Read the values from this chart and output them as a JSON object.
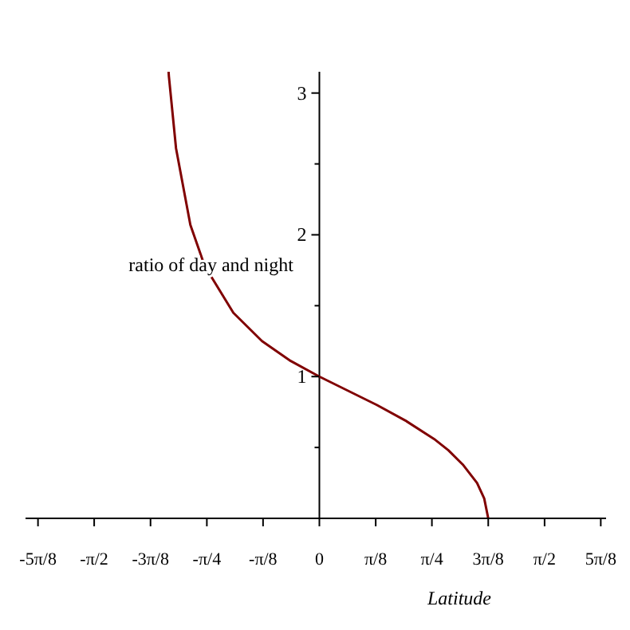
{
  "chart_data": {
    "type": "line",
    "xlabel": "Latitude",
    "x": [
      -1.052,
      -1.05,
      -1.0,
      -0.9,
      -0.8,
      -0.6,
      -0.4,
      -0.2,
      0,
      0.2,
      0.4,
      0.6,
      0.8,
      0.9,
      1.0,
      1.1,
      1.15,
      1.178
    ],
    "series": [
      {
        "name": "ratio of day and night",
        "color": "#800000",
        "values": [
          3.15,
          3.12,
          2.61,
          2.07,
          1.78,
          1.45,
          1.25,
          1.11,
          1.0,
          0.9,
          0.8,
          0.69,
          0.56,
          0.48,
          0.38,
          0.25,
          0.14,
          0
        ]
      }
    ],
    "xlim": [
      -2.05,
      2.0
    ],
    "xticks": [
      {
        "value": -1.963,
        "label": "-5π/8"
      },
      {
        "value": -1.571,
        "label": "-π/2"
      },
      {
        "value": -1.178,
        "label": "-3π/8"
      },
      {
        "value": -0.785,
        "label": "-π/4"
      },
      {
        "value": -0.393,
        "label": "-π/8"
      },
      0,
      {
        "value": 0.393,
        "label": "π/8"
      },
      {
        "value": 0.785,
        "label": "π/4"
      },
      {
        "value": 1.178,
        "label": "3π/8"
      },
      {
        "value": 1.571,
        "label": "π/2"
      },
      {
        "value": 1.963,
        "label": "5π/8"
      }
    ],
    "ylim": [
      0,
      3.15
    ],
    "yticks": [
      {
        "value": 0.5,
        "label": null
      },
      1,
      {
        "value": 1.5,
        "label": null
      },
      2,
      {
        "value": 2.5,
        "label": null
      },
      3
    ],
    "marker": "none",
    "line_style": "solid"
  }
}
